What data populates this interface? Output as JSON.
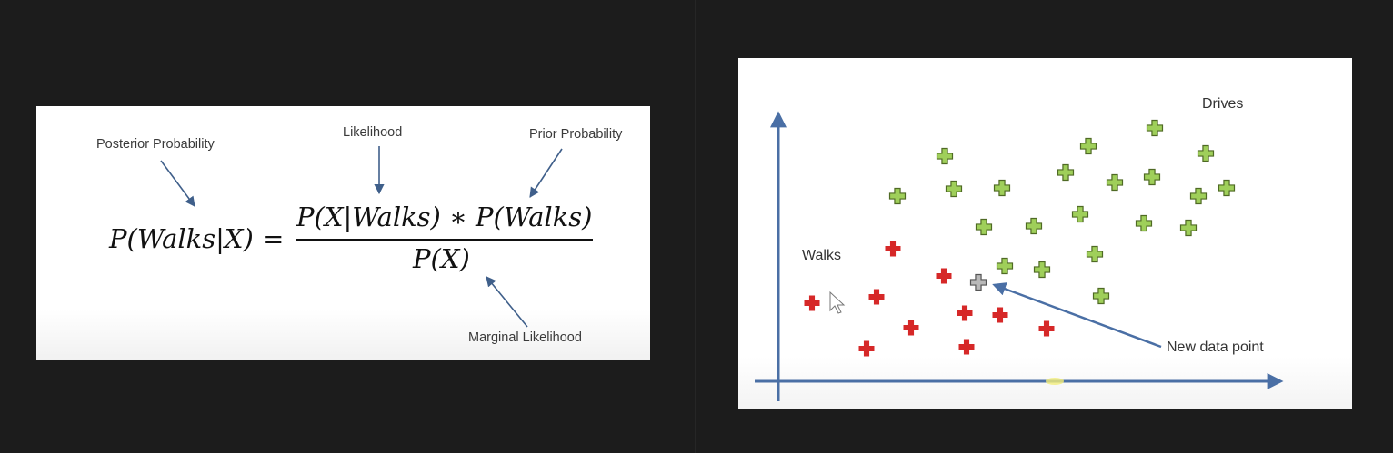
{
  "formula_panel": {
    "labels": {
      "posterior": "Posterior Probability",
      "likelihood": "Likelihood",
      "prior": "Prior Probability",
      "marginal": "Marginal Likelihood"
    },
    "formula": {
      "lhs": "P(Walks|X) =",
      "numerator": "P(X|Walks) ∗ P(Walks)",
      "denominator": "P(X)"
    },
    "arrow_color": "#3f5f8a"
  },
  "scatter_panel": {
    "labels": {
      "drives": "Drives",
      "walks": "Walks",
      "new_point": "New data point"
    },
    "colors": {
      "axis": "#4a6fa5",
      "walks": "#d62828",
      "drives": "#9fcf5a",
      "drives_outline": "#4f6a24",
      "new_point": "#b9b9b9",
      "new_point_outline": "#555555"
    }
  }
}
